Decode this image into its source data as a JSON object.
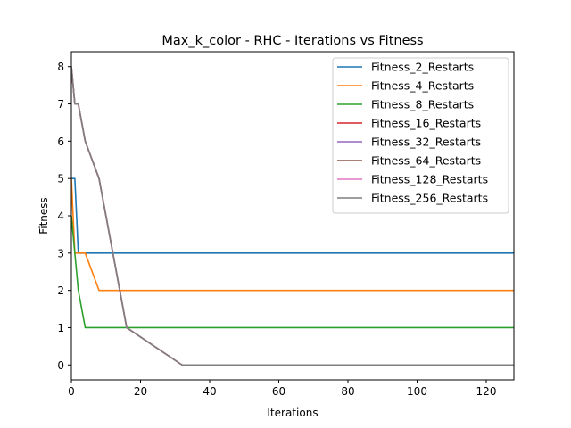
{
  "chart_data": {
    "type": "line",
    "title": "Max_k_color - RHC - Iterations vs Fitness",
    "xlabel": "Iterations",
    "ylabel": "Fitness",
    "xlim": [
      0,
      128
    ],
    "ylim": [
      -0.4,
      8.4
    ],
    "xticks": [
      0,
      20,
      40,
      60,
      80,
      100,
      120
    ],
    "yticks": [
      0,
      1,
      2,
      3,
      4,
      5,
      6,
      7,
      8
    ],
    "grid": false,
    "legend_position": "top-right",
    "series": [
      {
        "name": "Fitness_2_Restarts",
        "color": "#1f77b4",
        "points": [
          [
            0,
            5
          ],
          [
            1,
            5
          ],
          [
            2,
            3
          ],
          [
            128,
            3
          ]
        ]
      },
      {
        "name": "Fitness_4_Restarts",
        "color": "#ff7f0e",
        "points": [
          [
            0,
            5
          ],
          [
            1,
            3
          ],
          [
            4,
            3
          ],
          [
            8,
            2
          ],
          [
            128,
            2
          ]
        ]
      },
      {
        "name": "Fitness_8_Restarts",
        "color": "#2ca02c",
        "points": [
          [
            0,
            4
          ],
          [
            2,
            2
          ],
          [
            4,
            1
          ],
          [
            128,
            1
          ]
        ]
      },
      {
        "name": "Fitness_16_Restarts",
        "color": "#d62728",
        "points": [
          [
            0,
            8
          ],
          [
            1,
            7
          ],
          [
            2,
            7
          ],
          [
            4,
            6
          ],
          [
            8,
            5
          ],
          [
            16,
            1
          ],
          [
            32,
            0
          ],
          [
            128,
            0
          ]
        ]
      },
      {
        "name": "Fitness_32_Restarts",
        "color": "#9467bd",
        "points": [
          [
            0,
            8
          ],
          [
            1,
            7
          ],
          [
            2,
            7
          ],
          [
            4,
            6
          ],
          [
            8,
            5
          ],
          [
            16,
            1
          ],
          [
            32,
            0
          ],
          [
            128,
            0
          ]
        ]
      },
      {
        "name": "Fitness_64_Restarts",
        "color": "#8c564b",
        "points": [
          [
            0,
            8
          ],
          [
            1,
            7
          ],
          [
            2,
            7
          ],
          [
            4,
            6
          ],
          [
            8,
            5
          ],
          [
            16,
            1
          ],
          [
            32,
            0
          ],
          [
            128,
            0
          ]
        ]
      },
      {
        "name": "Fitness_128_Restarts",
        "color": "#e377c2",
        "points": [
          [
            0,
            8
          ],
          [
            1,
            7
          ],
          [
            2,
            7
          ],
          [
            4,
            6
          ],
          [
            8,
            5
          ],
          [
            16,
            1
          ],
          [
            32,
            0
          ],
          [
            128,
            0
          ]
        ]
      },
      {
        "name": "Fitness_256_Restarts",
        "color": "#7f7f7f",
        "points": [
          [
            0,
            8
          ],
          [
            1,
            7
          ],
          [
            2,
            7
          ],
          [
            4,
            6
          ],
          [
            8,
            5
          ],
          [
            16,
            1
          ],
          [
            32,
            0
          ],
          [
            128,
            0
          ]
        ]
      }
    ]
  }
}
